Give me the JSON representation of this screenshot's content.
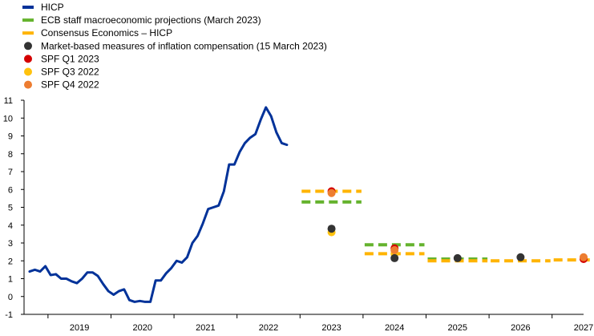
{
  "chart_data": {
    "type": "line",
    "title": "",
    "xlabel": "",
    "ylabel": "",
    "ylim": [
      -1,
      11
    ],
    "yticks": [
      -1,
      0,
      1,
      2,
      3,
      4,
      5,
      6,
      7,
      8,
      9,
      10,
      11
    ],
    "xlim": [
      2018.62,
      2027.5
    ],
    "year_labels": [
      "2019",
      "2020",
      "2021",
      "2022",
      "2023",
      "2024",
      "2025",
      "2026",
      "2027"
    ],
    "grid": false,
    "legend_position": "top-left",
    "legend": [
      {
        "key": "hicp",
        "label": "HICP",
        "kind": "line",
        "color": "#003299"
      },
      {
        "key": "ecb",
        "label": "ECB staff macroeconomic projections (March 2023)",
        "kind": "dash",
        "color": "#65B32E"
      },
      {
        "key": "consensus",
        "label": "Consensus Economics – HICP",
        "kind": "dash",
        "color": "#FFB400"
      },
      {
        "key": "market",
        "label": "Market-based measures of inflation compensation (15 March 2023)",
        "kind": "dot",
        "color": "#333333"
      },
      {
        "key": "spf_q1_2023",
        "label": "SPF Q1 2023",
        "kind": "dot",
        "color": "#D40000"
      },
      {
        "key": "spf_q3_2022",
        "label": "SPF Q3 2022",
        "kind": "dot",
        "color": "#FFC20E"
      },
      {
        "key": "spf_q4_2022",
        "label": "SPF Q4 2022",
        "kind": "dot",
        "color": "#ED7D31"
      }
    ],
    "hicp": {
      "name": "HICP",
      "x": [
        "2018-09",
        "2018-10",
        "2018-11",
        "2018-12",
        "2019-01",
        "2019-02",
        "2019-03",
        "2019-04",
        "2019-05",
        "2019-06",
        "2019-07",
        "2019-08",
        "2019-09",
        "2019-10",
        "2019-11",
        "2019-12",
        "2020-01",
        "2020-02",
        "2020-03",
        "2020-04",
        "2020-05",
        "2020-06",
        "2020-07",
        "2020-08",
        "2020-09",
        "2020-10",
        "2020-11",
        "2020-12",
        "2021-01",
        "2021-02",
        "2021-03",
        "2021-04",
        "2021-05",
        "2021-06",
        "2021-07",
        "2021-08",
        "2021-09",
        "2021-10",
        "2021-11",
        "2021-12",
        "2022-01",
        "2022-02",
        "2022-03",
        "2022-04",
        "2022-05",
        "2022-06",
        "2022-07",
        "2022-08",
        "2022-09",
        "2022-10",
        "2022-11",
        "2022-12",
        "2023-01",
        "2023-02"
      ],
      "y": [
        1.4,
        1.5,
        1.4,
        1.7,
        1.2,
        1.25,
        1.0,
        1.0,
        0.85,
        0.75,
        1.0,
        1.35,
        1.35,
        1.15,
        0.7,
        0.3,
        0.1,
        0.3,
        0.4,
        -0.2,
        -0.3,
        -0.25,
        -0.3,
        -0.3,
        0.9,
        0.9,
        1.3,
        1.6,
        2.0,
        1.9,
        2.2,
        3.0,
        3.4,
        4.1,
        4.9,
        5.0,
        5.1,
        5.9,
        7.4,
        7.4,
        8.1,
        8.6,
        8.9,
        9.1,
        9.9,
        10.6,
        10.1,
        9.2,
        8.6,
        8.5,
        null,
        null,
        null,
        null
      ]
    },
    "ecb_projections": {
      "name": "ECB staff macroeconomic projections (March 2023)",
      "years": [
        2023,
        2024,
        2025
      ],
      "values": [
        5.3,
        2.9,
        2.1
      ]
    },
    "consensus": {
      "name": "Consensus Economics – HICP",
      "years": [
        2023,
        2024,
        2025,
        2026,
        2027
      ],
      "values": [
        5.9,
        2.4,
        2.0,
        2.0,
        2.05
      ]
    },
    "market": {
      "name": "Market-based measures of inflation compensation (15 March 2023)",
      "years": [
        2023,
        2024,
        2025,
        2026
      ],
      "values": [
        3.8,
        2.15,
        2.15,
        2.2
      ]
    },
    "spf_q1_2023": {
      "name": "SPF Q1 2023",
      "years": [
        2023,
        2024,
        2027
      ],
      "values": [
        5.9,
        2.7,
        2.1
      ]
    },
    "spf_q3_2022": {
      "name": "SPF Q3 2022",
      "years": [
        2023,
        2024
      ],
      "values": [
        3.6,
        2.4
      ]
    },
    "spf_q4_2022": {
      "name": "SPF Q4 2022",
      "years": [
        2023,
        2024,
        2027
      ],
      "values": [
        5.8,
        2.6,
        2.2
      ]
    }
  }
}
